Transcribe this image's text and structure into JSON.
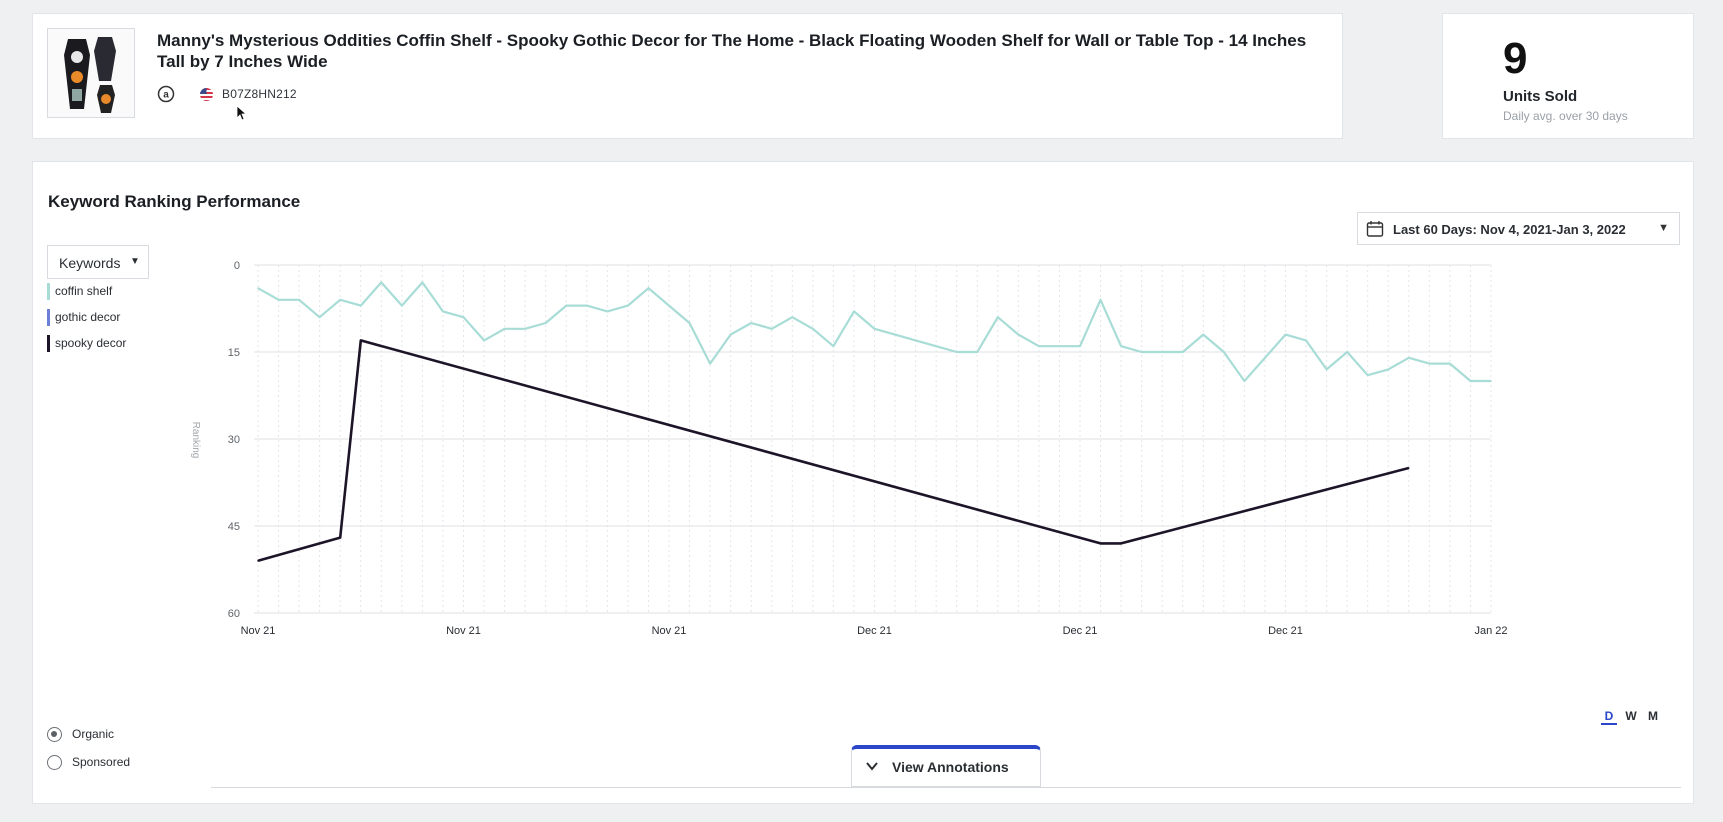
{
  "product": {
    "title": "Manny's Mysterious Oddities Coffin Shelf - Spooky Gothic Decor for The Home - Black Floating Wooden Shelf for Wall or Table Top - 14 Inches Tall by 7 Inches Wide",
    "asin": "B07Z8HN212",
    "marketplace_icon": "amazon-icon",
    "country_icon": "us-flag-icon"
  },
  "units": {
    "value": "9",
    "label": "Units Sold",
    "sublabel": "Daily avg. over 30 days"
  },
  "chart_section": {
    "title": "Keyword Ranking Performance",
    "date_range": "Last 60 Days: Nov 4, 2021-Jan 3, 2022",
    "keywords_dropdown": "Keywords",
    "keywords": [
      {
        "label": "coffin shelf",
        "color": "#a8dcd6"
      },
      {
        "label": "gothic decor",
        "color": "#6b7fd7"
      },
      {
        "label": "spooky decor",
        "color": "#1e1428"
      }
    ],
    "rank_type_options": [
      {
        "label": "Organic",
        "selected": true
      },
      {
        "label": "Sponsored",
        "selected": false
      }
    ],
    "period_buttons": [
      {
        "label": "D",
        "active": true
      },
      {
        "label": "W",
        "active": false
      },
      {
        "label": "M",
        "active": false
      }
    ],
    "annotations_button": "View Annotations"
  },
  "chart_data": {
    "type": "line",
    "ylabel": "Ranking",
    "ylim": [
      0,
      60
    ],
    "y_inverted": true,
    "yticks": [
      "0",
      "15",
      "30",
      "45",
      "60"
    ],
    "xticks": [
      "Nov 21",
      "Nov 21",
      "Nov 21",
      "Dec 21",
      "Dec 21",
      "Dec 21",
      "Jan 22"
    ],
    "x": [
      "2021-11-04",
      "2021-11-05",
      "2021-11-06",
      "2021-11-07",
      "2021-11-08",
      "2021-11-09",
      "2021-11-10",
      "2021-11-11",
      "2021-11-12",
      "2021-11-13",
      "2021-11-14",
      "2021-11-15",
      "2021-11-16",
      "2021-11-17",
      "2021-11-18",
      "2021-11-19",
      "2021-11-20",
      "2021-11-21",
      "2021-11-22",
      "2021-11-23",
      "2021-11-24",
      "2021-11-25",
      "2021-11-26",
      "2021-11-27",
      "2021-11-28",
      "2021-11-29",
      "2021-11-30",
      "2021-12-01",
      "2021-12-02",
      "2021-12-03",
      "2021-12-04",
      "2021-12-05",
      "2021-12-06",
      "2021-12-07",
      "2021-12-08",
      "2021-12-09",
      "2021-12-10",
      "2021-12-11",
      "2021-12-12",
      "2021-12-13",
      "2021-12-14",
      "2021-12-15",
      "2021-12-16",
      "2021-12-17",
      "2021-12-18",
      "2021-12-19",
      "2021-12-20",
      "2021-12-21",
      "2021-12-22",
      "2021-12-23",
      "2021-12-24",
      "2021-12-25",
      "2021-12-26",
      "2021-12-27",
      "2021-12-28",
      "2021-12-29",
      "2021-12-30",
      "2021-12-31",
      "2022-01-01",
      "2022-01-02",
      "2022-01-03"
    ],
    "series": [
      {
        "name": "coffin shelf",
        "color": "#a8dcd6",
        "values": [
          4,
          6,
          6,
          9,
          6,
          7,
          3,
          7,
          3,
          8,
          9,
          13,
          11,
          11,
          10,
          7,
          7,
          8,
          7,
          4,
          7,
          10,
          17,
          12,
          10,
          11,
          9,
          11,
          14,
          8,
          11,
          12,
          13,
          14,
          15,
          15,
          9,
          12,
          14,
          14,
          14,
          6,
          14,
          15,
          15,
          15,
          12,
          15,
          20,
          16,
          12,
          13,
          18,
          15,
          19,
          18,
          16,
          17,
          17,
          20,
          20
        ]
      },
      {
        "name": "spooky decor",
        "color": "#1e1428",
        "values": [
          51,
          null,
          null,
          null,
          47,
          13,
          null,
          null,
          null,
          null,
          null,
          null,
          null,
          null,
          null,
          null,
          null,
          null,
          null,
          null,
          null,
          null,
          null,
          null,
          null,
          null,
          null,
          null,
          null,
          null,
          null,
          null,
          null,
          null,
          null,
          null,
          null,
          null,
          null,
          null,
          null,
          48,
          48,
          null,
          null,
          null,
          null,
          null,
          null,
          null,
          null,
          null,
          null,
          null,
          null,
          null,
          35,
          null,
          null,
          null,
          null
        ]
      }
    ],
    "grid": true
  }
}
